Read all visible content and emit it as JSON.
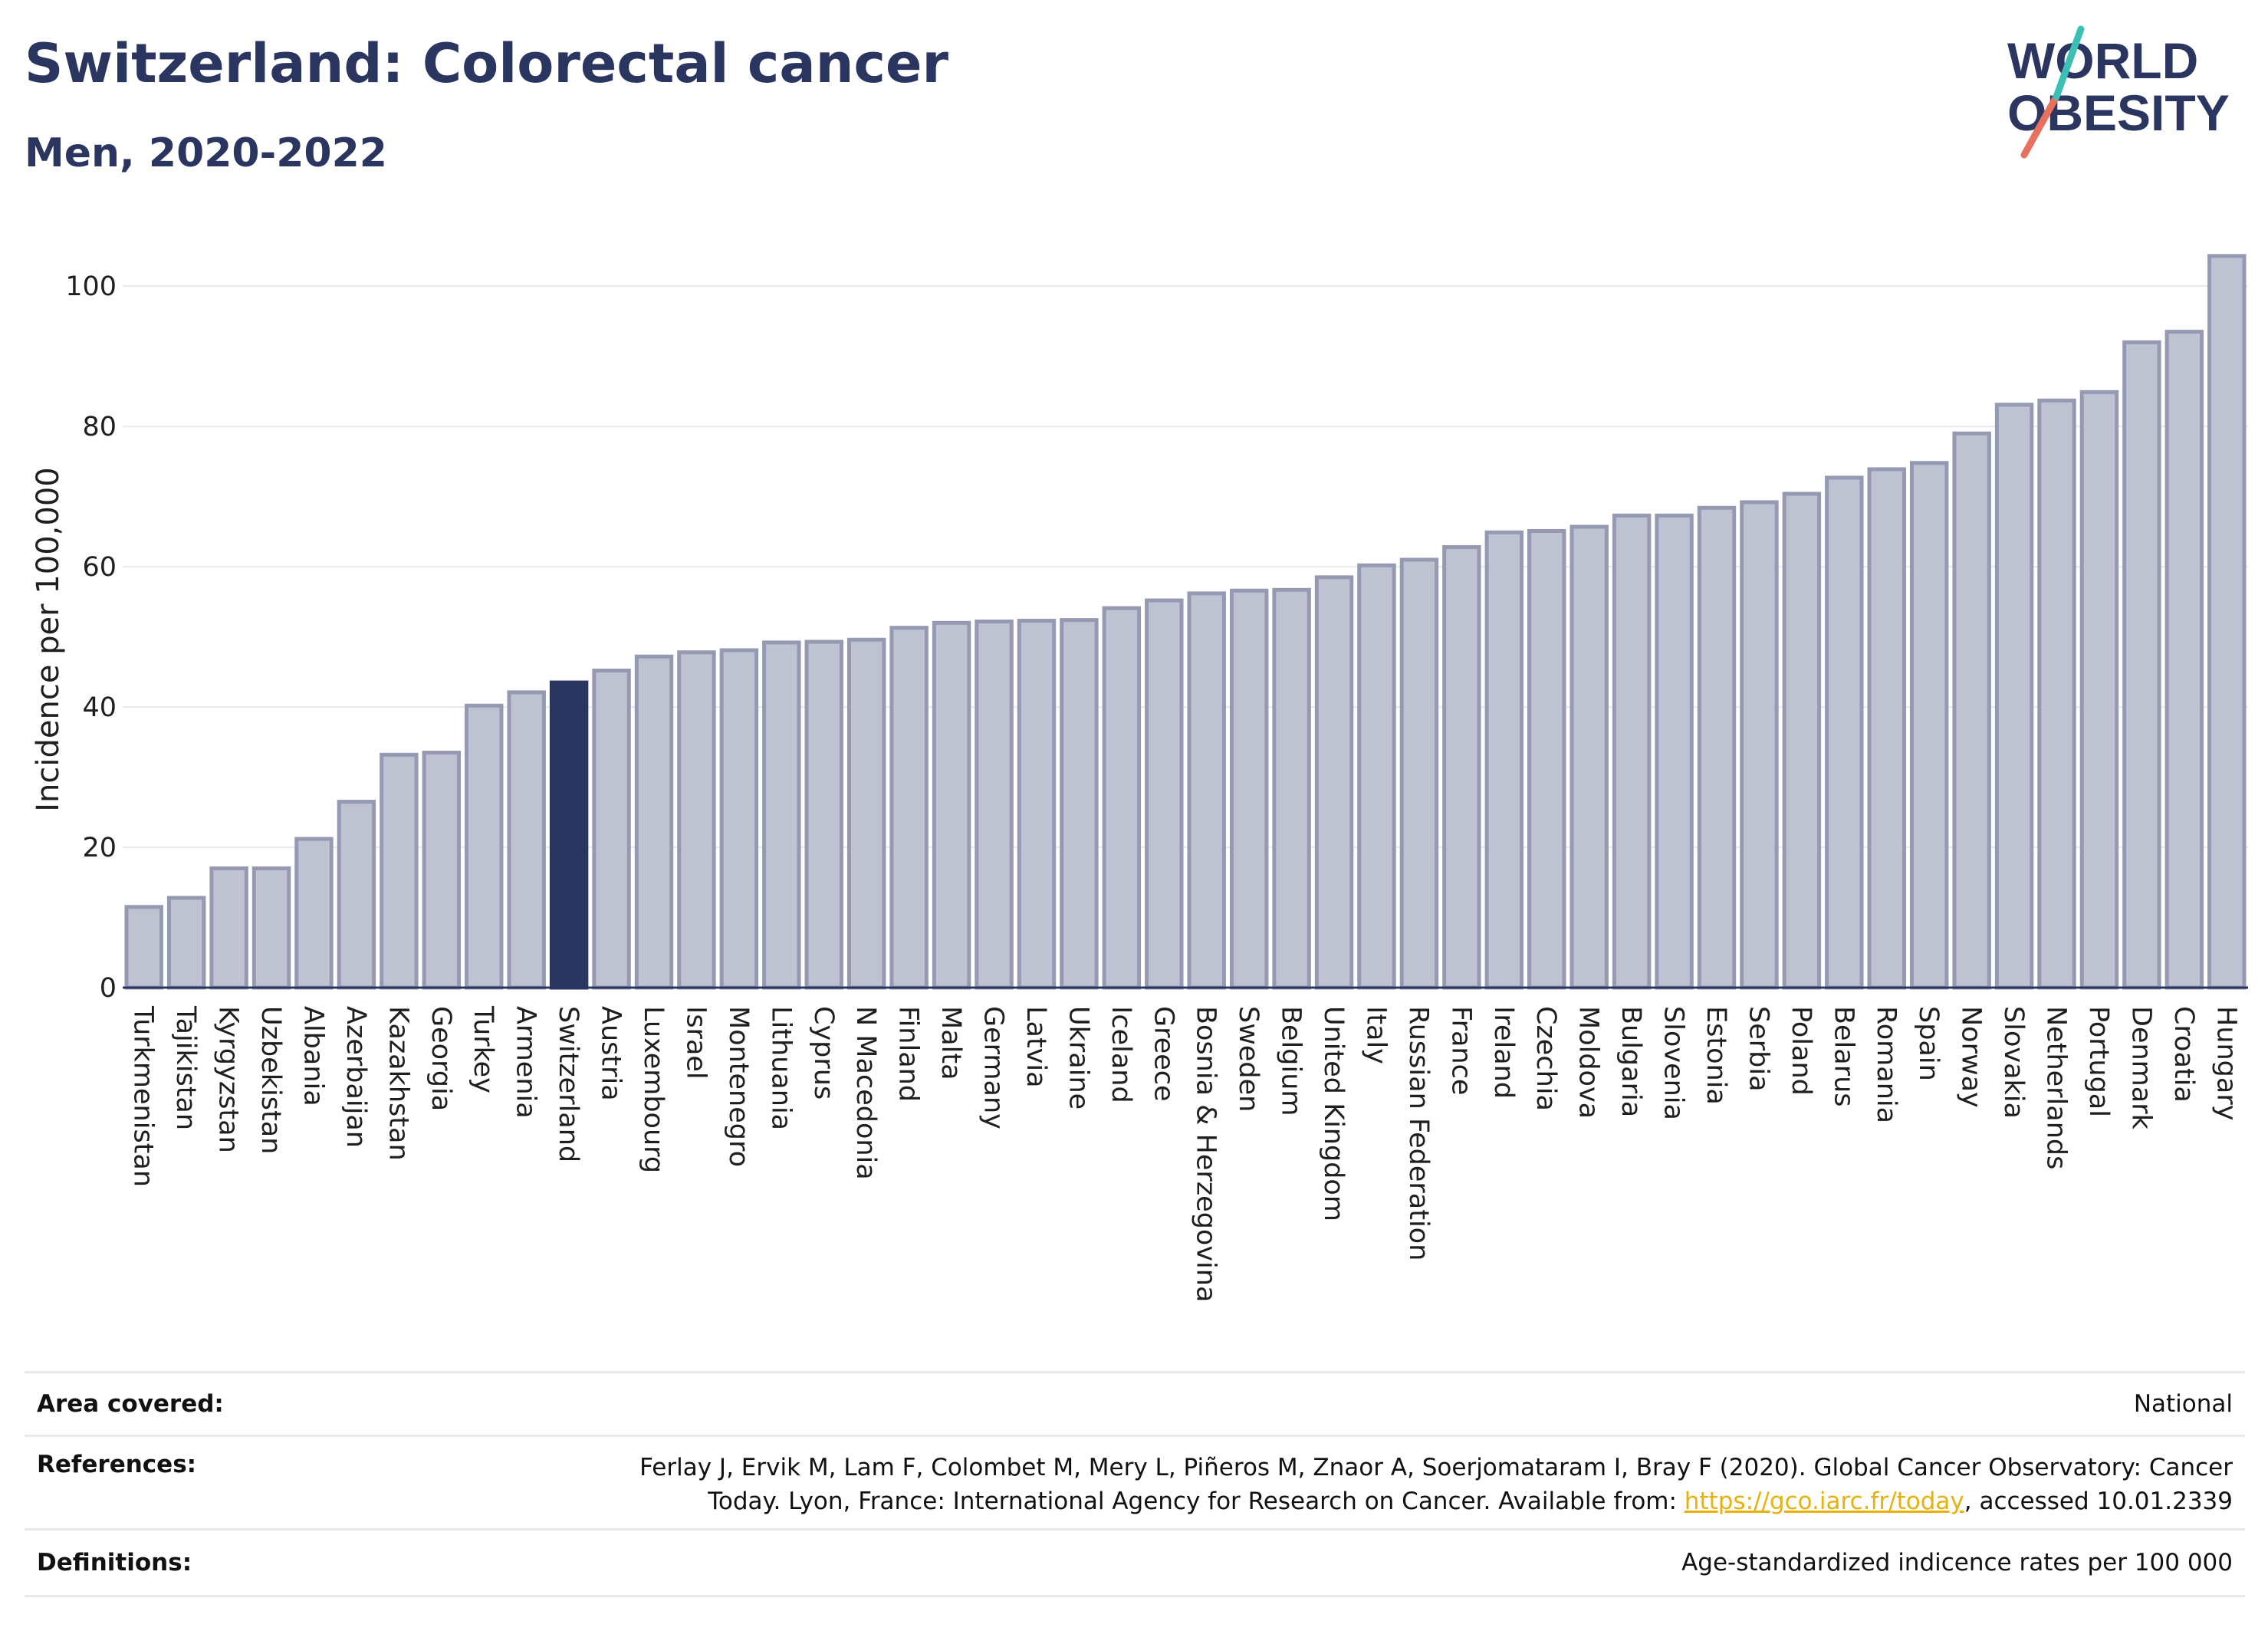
{
  "header": {
    "title": "Switzerland: Colorectal cancer",
    "subtitle": "Men, 2020-2022"
  },
  "logo": {
    "line1": "WORLD",
    "line2": "OBESITY"
  },
  "chart_data": {
    "type": "bar",
    "ylabel": "Incidence per 100,000",
    "xlabel": "",
    "ylim": [
      0,
      108
    ],
    "yticks": [
      0,
      20,
      40,
      60,
      80,
      100
    ],
    "grid": true,
    "highlight": "Switzerland",
    "colors": {
      "bar": "#bfc2d1",
      "bar_edge": "#9599b2",
      "highlight": "#2a3560",
      "grid": "#e6e8ec",
      "axis": "#2a3560"
    },
    "categories": [
      "Turkmenistan",
      "Tajikistan",
      "Kyrgyzstan",
      "Uzbekistan",
      "Albania",
      "Azerbaijan",
      "Kazakhstan",
      "Georgia",
      "Turkey",
      "Armenia",
      "Switzerland",
      "Austria",
      "Luxembourg",
      "Israel",
      "Montenegro",
      "Lithuania",
      "Cyprus",
      "N Macedonia",
      "Finland",
      "Malta",
      "Germany",
      "Latvia",
      "Ukraine",
      "Iceland",
      "Greece",
      "Bosnia & Herzegovina",
      "Sweden",
      "Belgium",
      "United Kingdom",
      "Italy",
      "Russian Federation",
      "France",
      "Ireland",
      "Czechia",
      "Moldova",
      "Bulgaria",
      "Slovenia",
      "Estonia",
      "Serbia",
      "Poland",
      "Belarus",
      "Romania",
      "Spain",
      "Norway",
      "Slovakia",
      "Netherlands",
      "Portugal",
      "Denmark",
      "Croatia",
      "Hungary"
    ],
    "values": [
      11.5,
      12.8,
      17,
      17,
      21.2,
      26.5,
      33.2,
      33.5,
      40.2,
      42.1,
      43.5,
      45.2,
      47.2,
      47.8,
      48.1,
      49.2,
      49.3,
      49.6,
      51.3,
      52,
      52.2,
      52.3,
      52.4,
      54.1,
      55.2,
      56.2,
      56.6,
      56.7,
      58.5,
      60.2,
      61,
      62.8,
      64.9,
      65.1,
      65.7,
      67.3,
      67.3,
      68.4,
      69.2,
      70.4,
      72.7,
      73.9,
      74.8,
      79,
      83.1,
      83.7,
      84.9,
      92,
      93.5,
      104.3
    ]
  },
  "info": {
    "area": {
      "label": "Area covered:",
      "value": "National"
    },
    "references": {
      "label": "References:",
      "line1": "Ferlay J, Ervik M, Lam F, Colombet M, Mery L, Piñeros M, Znaor A, Soerjomataram I, Bray F (2020). Global Cancer Observatory: Cancer",
      "line2_pre": "Today. Lyon, France: International Agency for Research on Cancer. Available from: ",
      "link": "https://gco.iarc.fr/today",
      "line2_post": ", accessed 10.01.2339"
    },
    "definitions": {
      "label": "Definitions:",
      "value": "Age-standardized indicence rates per 100 000"
    }
  }
}
